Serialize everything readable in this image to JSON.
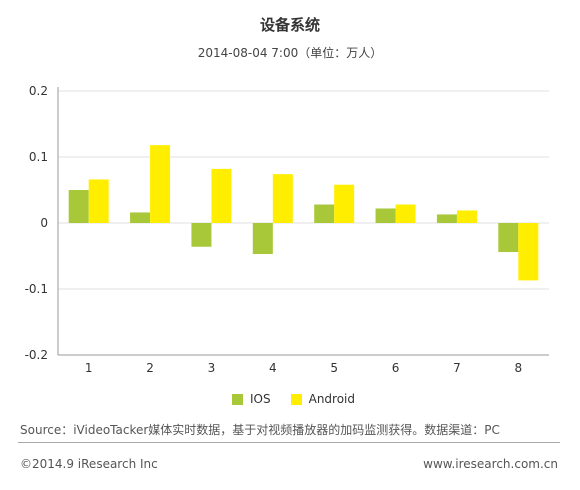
{
  "colors": {
    "ios": "#a8c83a",
    "android": "#ffee00",
    "grid": "#e2e2e2",
    "axis": "#999999"
  },
  "chart_data": {
    "type": "bar",
    "title": "设备系统",
    "subtitle": "2014-08-04 7:00（单位：万人）",
    "xlabel": "",
    "ylabel": "",
    "categories": [
      "1",
      "2",
      "3",
      "4",
      "5",
      "6",
      "7",
      "8"
    ],
    "series": [
      {
        "name": "IOS",
        "values": [
          0.05,
          0.016,
          -0.036,
          -0.047,
          0.028,
          0.022,
          0.013,
          -0.044
        ]
      },
      {
        "name": "Android",
        "values": [
          0.066,
          0.118,
          0.082,
          0.074,
          0.058,
          0.028,
          0.019,
          -0.087
        ]
      }
    ],
    "ylim": [
      -0.2,
      0.2
    ],
    "yticks": [
      "0.2",
      "0.1",
      "0",
      "-0.1",
      "-0.2"
    ],
    "ytick_values": [
      0.2,
      0.1,
      0,
      -0.1,
      -0.2
    ],
    "grid": true,
    "legend": "bottom-center"
  },
  "source": "Source：iVideoTacker媒体实时数据，基于对视频播放器的加码监测获得。数据渠道：PC",
  "footer": {
    "copyright": "©2014.9 iResearch Inc",
    "website": "www.iresearch.com.cn"
  }
}
